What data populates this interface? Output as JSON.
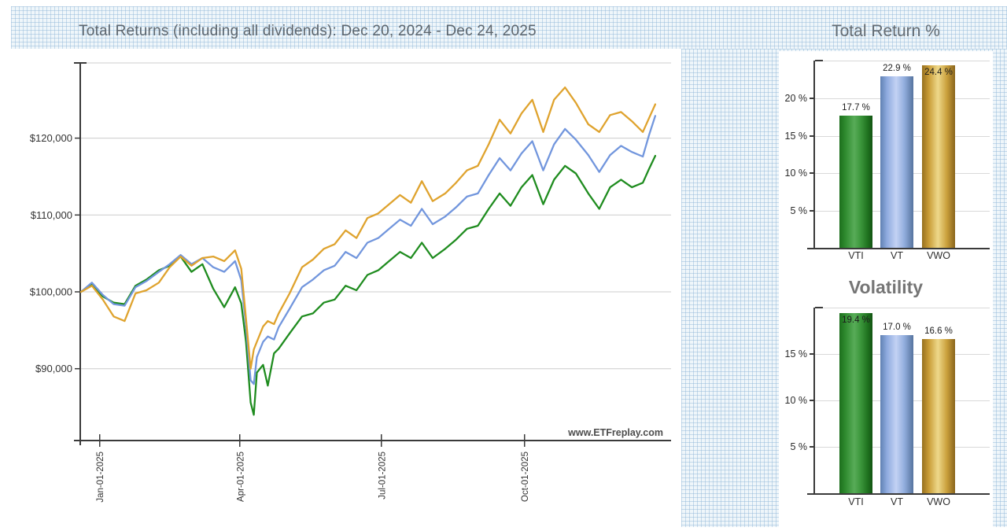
{
  "page": {
    "watermark": "www.ETFreplay.com"
  },
  "colors": {
    "vti_line": "#1f8c1f",
    "vt_line": "#7296dd",
    "vwo_line": "#dfa32e",
    "grid_line": "#cccccc",
    "axis": "#3a3a3a",
    "title_text": "#5d666e",
    "page_grid_blue": "#cfe2f0"
  },
  "chart_data": [
    {
      "id": "total_returns_line",
      "type": "line",
      "title": "Total Returns (including all dividends): Dec 20, 2024 - Dec 24, 2025",
      "x_unit": "days since Dec 20, 2024",
      "y_unit": "portfolio value in thousands of dollars (growth of $100,000)",
      "grid": true,
      "legend_position": "none",
      "x_ticks": [
        {
          "day": 12,
          "label": "Jan-01-2025"
        },
        {
          "day": 102,
          "label": "Apr-01-2025"
        },
        {
          "day": 193,
          "label": "Jul-01-2025"
        },
        {
          "day": 285,
          "label": "Oct-01-2025"
        }
      ],
      "y_ticks": [
        {
          "value": 90,
          "label": "$90,000"
        },
        {
          "value": 100,
          "label": "$100,000"
        },
        {
          "value": 110,
          "label": "$110,000"
        },
        {
          "value": 120,
          "label": "$120,000"
        }
      ],
      "ylim_thousands": [
        80.6,
        129.8
      ],
      "xlim_days": [
        0,
        369
      ],
      "series": [
        {
          "name": "VTI",
          "color": "#1f8c1f",
          "final_value_thousands": 117.7,
          "points": [
            [
              0,
              100.0
            ],
            [
              7,
              101.0
            ],
            [
              14,
              99.4
            ],
            [
              21,
              98.6
            ],
            [
              28,
              98.4
            ],
            [
              35,
              100.8
            ],
            [
              42,
              101.6
            ],
            [
              50,
              102.8
            ],
            [
              57,
              103.4
            ],
            [
              64,
              104.6
            ],
            [
              71,
              102.6
            ],
            [
              78,
              103.6
            ],
            [
              85,
              100.4
            ],
            [
              92,
              98.0
            ],
            [
              99,
              100.6
            ],
            [
              103,
              98.5
            ],
            [
              106,
              93.5
            ],
            [
              109,
              85.6
            ],
            [
              111,
              84.0
            ],
            [
              113,
              89.5
            ],
            [
              117,
              90.5
            ],
            [
              120,
              87.8
            ],
            [
              124,
              92.0
            ],
            [
              127,
              92.6
            ],
            [
              134,
              94.6
            ],
            [
              142,
              96.8
            ],
            [
              149,
              97.2
            ],
            [
              156,
              98.6
            ],
            [
              163,
              99.0
            ],
            [
              170,
              100.8
            ],
            [
              177,
              100.2
            ],
            [
              184,
              102.2
            ],
            [
              191,
              102.8
            ],
            [
              198,
              104.0
            ],
            [
              205,
              105.2
            ],
            [
              212,
              104.4
            ],
            [
              219,
              106.4
            ],
            [
              226,
              104.4
            ],
            [
              234,
              105.6
            ],
            [
              241,
              106.8
            ],
            [
              248,
              108.2
            ],
            [
              255,
              108.6
            ],
            [
              262,
              110.8
            ],
            [
              269,
              112.8
            ],
            [
              276,
              111.2
            ],
            [
              283,
              113.6
            ],
            [
              290,
              115.2
            ],
            [
              297,
              111.4
            ],
            [
              304,
              114.6
            ],
            [
              311,
              116.4
            ],
            [
              318,
              115.4
            ],
            [
              326,
              112.8
            ],
            [
              333,
              110.8
            ],
            [
              340,
              113.6
            ],
            [
              347,
              114.6
            ],
            [
              354,
              113.6
            ],
            [
              361,
              114.2
            ],
            [
              365,
              116.0
            ],
            [
              369,
              117.7
            ]
          ]
        },
        {
          "name": "VT",
          "color": "#7296dd",
          "final_value_thousands": 122.9,
          "points": [
            [
              0,
              100.0
            ],
            [
              7,
              101.2
            ],
            [
              14,
              99.6
            ],
            [
              21,
              98.4
            ],
            [
              28,
              98.2
            ],
            [
              35,
              100.6
            ],
            [
              42,
              101.4
            ],
            [
              50,
              102.6
            ],
            [
              57,
              103.6
            ],
            [
              64,
              104.8
            ],
            [
              71,
              103.6
            ],
            [
              78,
              104.4
            ],
            [
              85,
              103.2
            ],
            [
              92,
              102.6
            ],
            [
              99,
              104.0
            ],
            [
              103,
              101.5
            ],
            [
              106,
              95.5
            ],
            [
              109,
              88.5
            ],
            [
              111,
              88.0
            ],
            [
              113,
              91.5
            ],
            [
              117,
              93.5
            ],
            [
              120,
              94.2
            ],
            [
              124,
              93.8
            ],
            [
              127,
              95.4
            ],
            [
              134,
              97.8
            ],
            [
              142,
              100.6
            ],
            [
              149,
              101.6
            ],
            [
              156,
              102.8
            ],
            [
              163,
              103.4
            ],
            [
              170,
              105.2
            ],
            [
              177,
              104.4
            ],
            [
              184,
              106.4
            ],
            [
              191,
              107.0
            ],
            [
              198,
              108.2
            ],
            [
              205,
              109.4
            ],
            [
              212,
              108.6
            ],
            [
              219,
              110.8
            ],
            [
              226,
              108.8
            ],
            [
              234,
              109.8
            ],
            [
              241,
              111.0
            ],
            [
              248,
              112.4
            ],
            [
              255,
              112.8
            ],
            [
              262,
              115.2
            ],
            [
              269,
              117.4
            ],
            [
              276,
              115.8
            ],
            [
              283,
              118.0
            ],
            [
              290,
              119.6
            ],
            [
              297,
              115.8
            ],
            [
              304,
              119.2
            ],
            [
              311,
              121.2
            ],
            [
              318,
              119.8
            ],
            [
              326,
              117.8
            ],
            [
              333,
              115.6
            ],
            [
              340,
              117.8
            ],
            [
              347,
              119.0
            ],
            [
              354,
              118.2
            ],
            [
              361,
              117.6
            ],
            [
              365,
              120.4
            ],
            [
              369,
              122.9
            ]
          ]
        },
        {
          "name": "VWO",
          "color": "#dfa32e",
          "final_value_thousands": 124.4,
          "points": [
            [
              0,
              100.0
            ],
            [
              7,
              100.8
            ],
            [
              14,
              99.0
            ],
            [
              21,
              96.8
            ],
            [
              28,
              96.2
            ],
            [
              35,
              99.8
            ],
            [
              42,
              100.2
            ],
            [
              50,
              101.2
            ],
            [
              57,
              103.2
            ],
            [
              64,
              104.6
            ],
            [
              71,
              103.4
            ],
            [
              78,
              104.4
            ],
            [
              85,
              104.6
            ],
            [
              92,
              104.0
            ],
            [
              99,
              105.4
            ],
            [
              103,
              103.0
            ],
            [
              106,
              96.5
            ],
            [
              109,
              90.0
            ],
            [
              111,
              92.5
            ],
            [
              113,
              93.5
            ],
            [
              117,
              95.5
            ],
            [
              120,
              96.2
            ],
            [
              124,
              95.8
            ],
            [
              127,
              97.2
            ],
            [
              134,
              99.8
            ],
            [
              142,
              103.2
            ],
            [
              149,
              104.2
            ],
            [
              156,
              105.6
            ],
            [
              163,
              106.2
            ],
            [
              170,
              108.0
            ],
            [
              177,
              107.0
            ],
            [
              184,
              109.6
            ],
            [
              191,
              110.2
            ],
            [
              198,
              111.4
            ],
            [
              205,
              112.6
            ],
            [
              212,
              111.6
            ],
            [
              219,
              114.4
            ],
            [
              226,
              111.8
            ],
            [
              234,
              112.8
            ],
            [
              241,
              114.2
            ],
            [
              248,
              115.8
            ],
            [
              255,
              116.4
            ],
            [
              262,
              119.2
            ],
            [
              269,
              122.4
            ],
            [
              276,
              120.6
            ],
            [
              283,
              123.2
            ],
            [
              290,
              125.0
            ],
            [
              297,
              120.8
            ],
            [
              304,
              125.0
            ],
            [
              311,
              126.6
            ],
            [
              318,
              124.6
            ],
            [
              326,
              121.8
            ],
            [
              333,
              120.8
            ],
            [
              340,
              123.0
            ],
            [
              347,
              123.4
            ],
            [
              354,
              122.2
            ],
            [
              361,
              120.8
            ],
            [
              365,
              122.6
            ],
            [
              369,
              124.4
            ]
          ]
        }
      ]
    },
    {
      "id": "total_return_pct",
      "type": "bar",
      "title": "Total Return %",
      "categories": [
        "VTI",
        "VT",
        "VWO"
      ],
      "values": [
        17.7,
        22.9,
        24.4
      ],
      "labels": [
        "17.7 %",
        "22.9 %",
        "24.4 %"
      ],
      "y_ticks": [
        5,
        10,
        15,
        20
      ],
      "y_tick_labels": [
        "5 %",
        "10 %",
        "15 %",
        "20 %"
      ],
      "ylim": [
        0,
        25
      ],
      "grid": true,
      "legend_position": "none"
    },
    {
      "id": "volatility",
      "type": "bar",
      "title": "Volatility",
      "categories": [
        "VTI",
        "VT",
        "VWO"
      ],
      "values": [
        19.4,
        17.0,
        16.6
      ],
      "labels": [
        "19.4 %",
        "17.0 %",
        "16.6 %"
      ],
      "y_ticks": [
        5,
        10,
        15
      ],
      "y_tick_labels": [
        "5 %",
        "10 %",
        "15 %"
      ],
      "ylim": [
        0,
        20
      ],
      "grid": true,
      "legend_position": "none"
    }
  ]
}
